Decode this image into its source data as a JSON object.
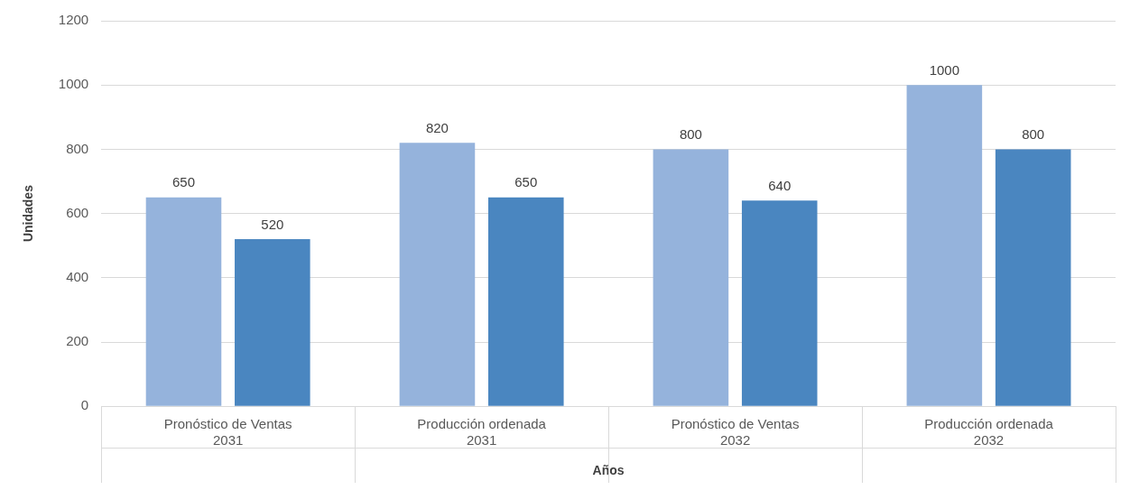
{
  "chart_data": {
    "type": "bar",
    "categories": [
      "Pronóstico de Ventas\n2031",
      "Producción ordenada\n2031",
      "Pronóstico de Ventas\n2032",
      "Producción ordenada\n2032"
    ],
    "series": [
      {
        "color": "#95b3dc",
        "values": [
          650,
          820,
          800,
          1000
        ]
      },
      {
        "color": "#4a86c0",
        "values": [
          520,
          650,
          640,
          800
        ]
      }
    ],
    "xlabel": "Años",
    "ylabel": "Unidades",
    "ylim": [
      0,
      1200
    ],
    "yticks": [
      0,
      200,
      400,
      600,
      800,
      1000,
      1200
    ],
    "grid": "y",
    "data_labels": true,
    "legend": false
  }
}
